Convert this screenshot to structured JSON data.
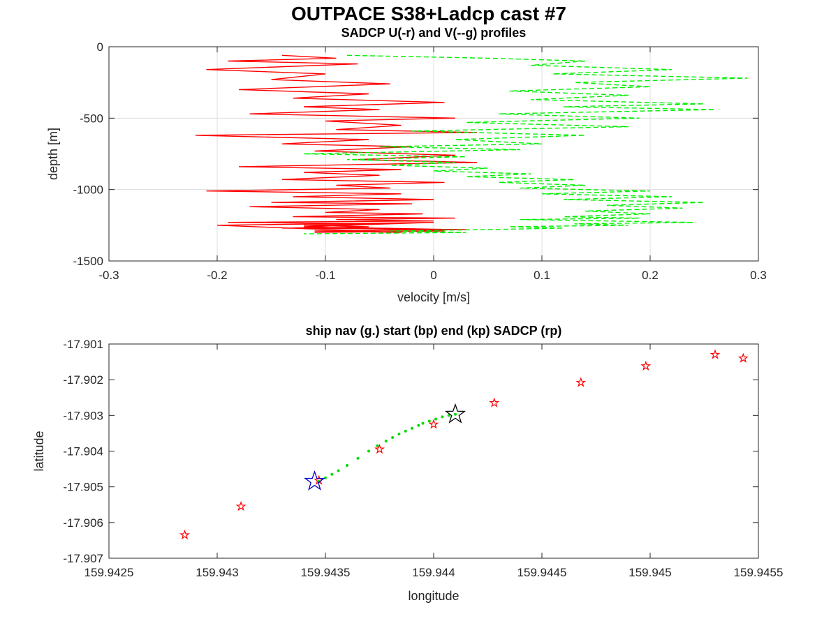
{
  "figure": {
    "title": "OUTPACE S38+Ladcp cast #7"
  },
  "chart_data": [
    {
      "type": "line",
      "title": "SADCP U(-r) and V(--g) profiles",
      "xlabel": "velocity [m/s]",
      "ylabel": "depth [m]",
      "xlim": [
        -0.3,
        0.3
      ],
      "ylim": [
        -1500,
        0
      ],
      "grid": true,
      "xticks": [
        -0.3,
        -0.2,
        -0.1,
        0,
        0.1,
        0.2,
        0.3
      ],
      "xtick_labels": [
        "-0.3",
        "-0.2",
        "-0.1",
        "0",
        "0.1",
        "0.2",
        "0.3"
      ],
      "yticks": [
        0,
        -500,
        -1000,
        -1500
      ],
      "ytick_labels": [
        "0",
        "-500",
        "-1000",
        "-1500"
      ],
      "series": [
        {
          "color": "#ff0000",
          "style": "solid",
          "x": [
            -0.14,
            -0.09,
            -0.19,
            -0.07,
            -0.21,
            -0.1,
            -0.15,
            -0.04,
            -0.18,
            -0.06,
            -0.13,
            0.01,
            -0.12,
            -0.05,
            -0.17,
            0.02,
            -0.1,
            -0.03,
            -0.09,
            0.04,
            -0.22,
            -0.06,
            -0.14,
            -0.02,
            -0.11,
            0.02,
            -0.07,
            0.04,
            -0.18,
            -0.03,
            -0.12,
            -0.05,
            -0.14,
            0.01,
            -0.09,
            -0.04,
            -0.21,
            -0.03,
            -0.13,
            0.0,
            -0.15,
            -0.02,
            -0.17,
            -0.05,
            -0.1,
            -0.01,
            -0.13,
            0.02,
            -0.09,
            0.0,
            -0.19,
            -0.04,
            -0.12,
            -0.06,
            -0.14,
            0.03,
            -0.11,
            -0.03,
            -0.2,
            0.0,
            -0.12,
            0.02,
            -0.08,
            0.01,
            -0.11
          ],
          "y": [
            -60,
            -80,
            -100,
            -120,
            -160,
            -190,
            -230,
            -260,
            -300,
            -330,
            -360,
            -390,
            -420,
            -440,
            -470,
            -500,
            -520,
            -550,
            -580,
            -600,
            -620,
            -650,
            -680,
            -700,
            -730,
            -760,
            -790,
            -810,
            -840,
            -860,
            -880,
            -900,
            -930,
            -950,
            -970,
            -990,
            -1010,
            -1030,
            -1050,
            -1070,
            -1090,
            -1100,
            -1120,
            -1140,
            -1160,
            -1170,
            -1190,
            -1200,
            -1210,
            -1220,
            -1230,
            -1240,
            -1250,
            -1260,
            -1270,
            -1280,
            -1290,
            -1300,
            -1250,
            -1230,
            -1260,
            -1280,
            -1270,
            -1290,
            -1300
          ]
        },
        {
          "color": "#00ee00",
          "style": "dashed",
          "x": [
            -0.08,
            0.05,
            0.14,
            0.09,
            0.22,
            0.11,
            0.29,
            0.13,
            0.2,
            0.07,
            0.18,
            0.09,
            0.25,
            0.12,
            0.26,
            0.06,
            0.19,
            0.03,
            0.18,
            -0.02,
            0.14,
            0.02,
            0.1,
            -0.05,
            0.08,
            -0.12,
            0.03,
            -0.08,
            0.02,
            -0.04,
            0.05,
            0.0,
            0.09,
            0.03,
            0.13,
            0.06,
            0.14,
            0.08,
            0.2,
            0.1,
            0.22,
            0.12,
            0.25,
            0.16,
            0.23,
            0.14,
            0.2,
            0.12,
            0.19,
            0.08,
            0.24,
            0.13,
            0.18,
            0.07,
            0.12,
            0.05,
            -0.04,
            0.03,
            -0.12
          ],
          "y": [
            -60,
            -80,
            -100,
            -130,
            -160,
            -190,
            -220,
            -250,
            -280,
            -310,
            -340,
            -370,
            -400,
            -420,
            -440,
            -470,
            -500,
            -530,
            -560,
            -590,
            -620,
            -650,
            -680,
            -700,
            -720,
            -750,
            -770,
            -790,
            -810,
            -830,
            -850,
            -870,
            -890,
            -910,
            -930,
            -950,
            -970,
            -990,
            -1010,
            -1030,
            -1050,
            -1070,
            -1090,
            -1110,
            -1130,
            -1150,
            -1170,
            -1190,
            -1200,
            -1210,
            -1230,
            -1240,
            -1250,
            -1260,
            -1270,
            -1280,
            -1290,
            -1300,
            -1310
          ]
        }
      ]
    },
    {
      "type": "scatter",
      "title": "ship nav (g.) start (bp) end (kp) SADCP (rp)",
      "xlabel": "longitude",
      "ylabel": "latitude",
      "xlim": [
        159.9425,
        159.9455
      ],
      "ylim": [
        -17.907,
        -17.901
      ],
      "grid": false,
      "xticks": [
        159.9425,
        159.943,
        159.9435,
        159.944,
        159.9445,
        159.945,
        159.9455
      ],
      "xtick_labels": [
        "159.9425",
        "159.943",
        "159.9435",
        "159.944",
        "159.9445",
        "159.945",
        "159.9455"
      ],
      "yticks": [
        -17.901,
        -17.902,
        -17.903,
        -17.904,
        -17.905,
        -17.906,
        -17.907
      ],
      "ytick_labels": [
        "-17.901",
        "-17.902",
        "-17.903",
        "-17.904",
        "-17.905",
        "-17.906",
        "-17.907"
      ],
      "series": [
        {
          "color": "#00dd00",
          "marker": "dot",
          "x": [
            159.94347,
            159.9435,
            159.94353,
            159.94356,
            159.9436,
            159.94365,
            159.9437,
            159.94374,
            159.94378,
            159.94381,
            159.94384,
            159.94387,
            159.9439,
            159.94393,
            159.94395,
            159.94398,
            159.94401,
            159.94404,
            159.94407,
            159.9441
          ],
          "y": [
            -17.90485,
            -17.90475,
            -17.90465,
            -17.90455,
            -17.9044,
            -17.9042,
            -17.904,
            -17.90385,
            -17.90372,
            -17.90362,
            -17.90352,
            -17.90344,
            -17.90336,
            -17.90328,
            -17.90322,
            -17.90316,
            -17.9031,
            -17.90304,
            -17.903,
            -17.90297
          ]
        },
        {
          "color": "#ff0000",
          "marker": "star",
          "x": [
            159.94285,
            159.94311,
            159.94347,
            159.94375,
            159.944,
            159.94428,
            159.94468,
            159.94498,
            159.9453,
            159.94543
          ],
          "y": [
            -17.90635,
            -17.90555,
            -17.90482,
            -17.90395,
            -17.90325,
            -17.90265,
            -17.90208,
            -17.90162,
            -17.9013,
            -17.9014
          ]
        },
        {
          "color": "#0000cc",
          "marker": "big-star",
          "x": [
            159.94345
          ],
          "y": [
            -17.90485
          ]
        },
        {
          "color": "#000000",
          "marker": "big-star",
          "x": [
            159.9441
          ],
          "y": [
            -17.90297
          ]
        }
      ]
    }
  ]
}
